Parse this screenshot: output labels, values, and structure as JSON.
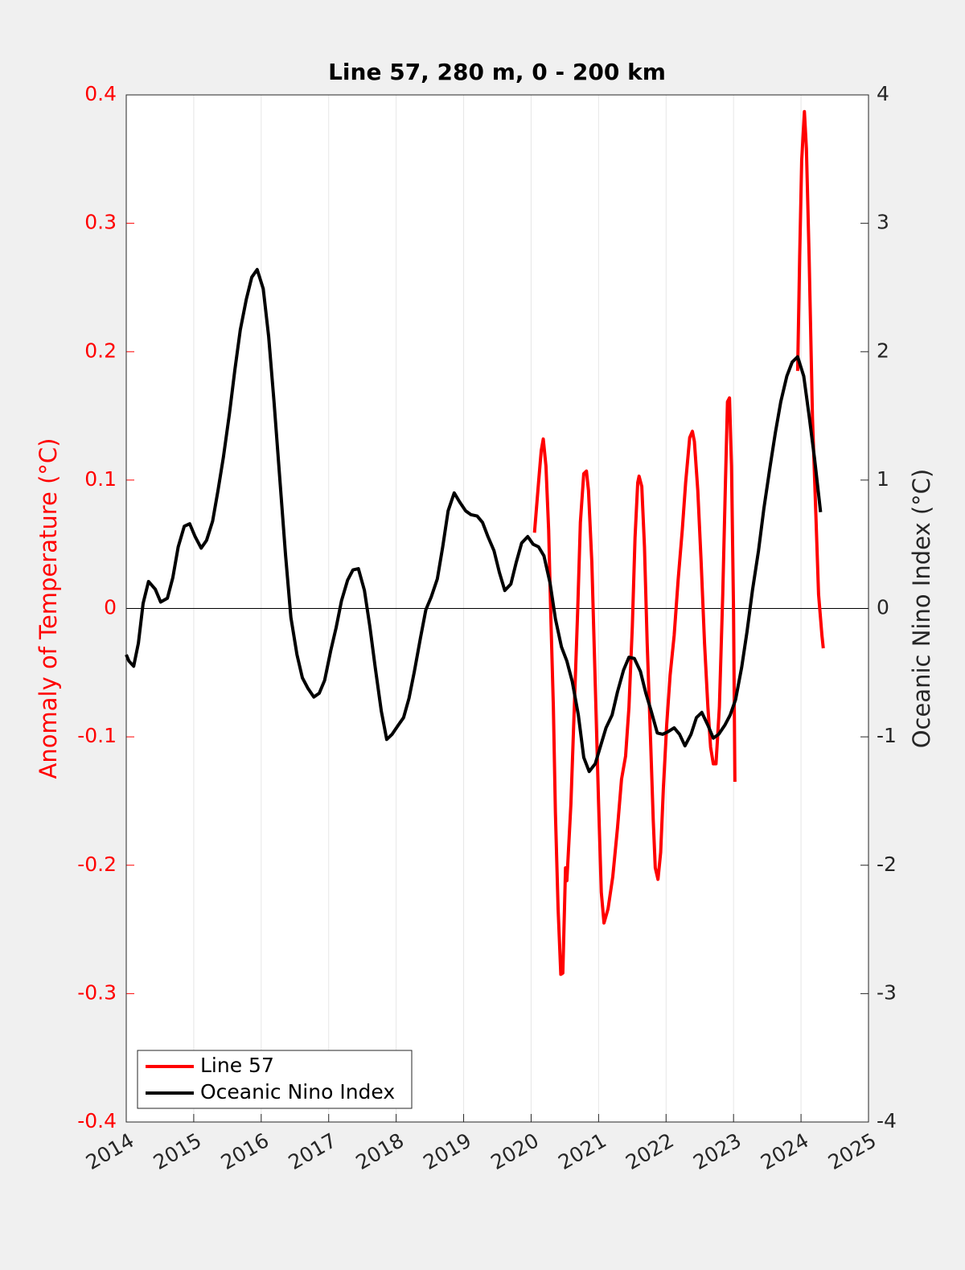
{
  "chart_data": {
    "type": "line",
    "title": "Line 57, 280 m, 0 - 200 km",
    "ylabel": "Anomaly of Temperature (°C)",
    "y2label": "Oceanic Nino Index (°C)",
    "xlim": [
      2014,
      2025
    ],
    "xticks": [
      2014,
      2015,
      2016,
      2017,
      2018,
      2019,
      2020,
      2021,
      2022,
      2023,
      2024,
      2025
    ],
    "ylim": [
      -0.4,
      0.4
    ],
    "yticks": [
      -0.4,
      -0.3,
      -0.2,
      -0.1,
      0,
      0.1,
      0.2,
      0.3,
      0.4
    ],
    "y2lim": [
      -4,
      4
    ],
    "y2ticks": [
      -4,
      -3,
      -2,
      -1,
      0,
      1,
      2,
      3,
      4
    ],
    "xgrid": true,
    "hline": 0,
    "legend": "lower left",
    "ylabel_color": "#ff0000",
    "series": [
      {
        "name": "Line 57",
        "color": "#ff0000",
        "axis": "y",
        "x": [
          2020.05,
          2020.11,
          2020.15,
          2020.18,
          2020.22,
          2020.26,
          2020.29,
          2020.33,
          2020.36,
          2020.4,
          2020.44,
          2020.47,
          2020.51,
          2020.53,
          2020.54,
          2020.59,
          2020.64,
          2020.69,
          2020.73,
          2020.78,
          2020.82,
          2020.85,
          2020.9,
          2020.95,
          2021.0,
          2021.04,
          2021.08,
          2021.14,
          2021.21,
          2021.28,
          2021.34,
          2021.4,
          2021.45,
          2021.5,
          2021.54,
          2021.58,
          2021.6,
          2021.64,
          2021.68,
          2021.72,
          2021.77,
          2021.81,
          2021.84,
          2021.88,
          2021.92,
          2021.96,
          2022.01,
          2022.06,
          2022.12,
          2022.18,
          2022.24,
          2022.29,
          2022.35,
          2022.39,
          2022.42,
          2022.47,
          2022.52,
          2022.57,
          2022.62,
          2022.66,
          2022.7,
          2022.74,
          2022.79,
          2022.84,
          2022.88,
          2022.91,
          2022.94,
          2022.97,
          2023.0,
          2023.02,
          null,
          2023.95,
          2023.98,
          2024.01,
          2024.05,
          2024.08,
          2024.12,
          2024.17,
          2024.22,
          2024.26,
          2024.31,
          2024.33
        ],
        "values": [
          0.059,
          0.098,
          0.123,
          0.132,
          0.111,
          0.061,
          -0.002,
          -0.077,
          -0.159,
          -0.234,
          -0.285,
          -0.284,
          -0.202,
          -0.212,
          -0.202,
          -0.152,
          -0.077,
          -0.002,
          0.067,
          0.105,
          0.107,
          0.092,
          0.036,
          -0.058,
          -0.152,
          -0.221,
          -0.245,
          -0.234,
          -0.209,
          -0.171,
          -0.133,
          -0.115,
          -0.077,
          -0.014,
          0.055,
          0.098,
          0.103,
          0.095,
          0.048,
          -0.027,
          -0.102,
          -0.165,
          -0.202,
          -0.211,
          -0.19,
          -0.14,
          -0.09,
          -0.052,
          -0.021,
          0.023,
          0.061,
          0.098,
          0.133,
          0.138,
          0.13,
          0.092,
          0.036,
          -0.027,
          -0.077,
          -0.108,
          -0.121,
          -0.121,
          -0.077,
          0.011,
          0.098,
          0.161,
          0.164,
          0.111,
          -0.002,
          -0.135,
          null,
          0.185,
          0.274,
          0.349,
          0.387,
          0.358,
          0.274,
          0.148,
          0.073,
          0.011,
          -0.021,
          -0.031
        ]
      },
      {
        "name": "Oceanic Nino Index",
        "color": "#000000",
        "axis": "y2",
        "x": [
          2014.0,
          2014.04,
          2014.11,
          2014.18,
          2014.25,
          2014.33,
          2014.43,
          2014.51,
          2014.61,
          2014.69,
          2014.77,
          2014.86,
          2014.94,
          2015.02,
          2015.11,
          2015.19,
          2015.28,
          2015.36,
          2015.44,
          2015.53,
          2015.61,
          2015.69,
          2015.78,
          2015.86,
          2015.94,
          2016.03,
          2016.11,
          2016.19,
          2016.28,
          2016.36,
          2016.44,
          2016.53,
          2016.61,
          2016.69,
          2016.78,
          2016.86,
          2016.94,
          2017.03,
          2017.11,
          2017.19,
          2017.28,
          2017.36,
          2017.44,
          2017.53,
          2017.61,
          2017.69,
          2017.78,
          2017.86,
          2017.94,
          2018.03,
          2018.11,
          2018.19,
          2018.27,
          2018.36,
          2018.44,
          2018.52,
          2018.61,
          2018.69,
          2018.77,
          2018.86,
          2018.94,
          2019.03,
          2019.11,
          2019.2,
          2019.28,
          2019.36,
          2019.45,
          2019.53,
          2019.61,
          2019.7,
          2019.78,
          2019.86,
          2019.95,
          2020.03,
          2020.11,
          2020.19,
          2020.28,
          2020.36,
          2020.45,
          2020.53,
          2020.61,
          2020.7,
          2020.78,
          2020.86,
          2020.95,
          2021.03,
          2021.11,
          2021.2,
          2021.28,
          2021.37,
          2021.45,
          2021.53,
          2021.62,
          2021.7,
          2021.78,
          2021.87,
          2021.95,
          2022.03,
          2022.12,
          2022.2,
          2022.28,
          2022.37,
          2022.45,
          2022.53,
          2022.62,
          2022.7,
          2022.78,
          2022.87,
          2022.95,
          2023.03,
          2023.12,
          2023.2,
          2023.28,
          2023.37,
          2023.45,
          2023.54,
          2023.62,
          2023.7,
          2023.79,
          2023.87,
          2023.95,
          2024.04,
          2024.12,
          2024.2,
          2024.29
        ],
        "values": [
          -0.36,
          -0.41,
          -0.45,
          -0.27,
          0.04,
          0.21,
          0.15,
          0.05,
          0.08,
          0.24,
          0.48,
          0.64,
          0.66,
          0.56,
          0.47,
          0.53,
          0.68,
          0.92,
          1.18,
          1.52,
          1.86,
          2.17,
          2.41,
          2.58,
          2.64,
          2.49,
          2.12,
          1.61,
          0.98,
          0.42,
          -0.07,
          -0.36,
          -0.54,
          -0.62,
          -0.69,
          -0.66,
          -0.56,
          -0.33,
          -0.15,
          0.06,
          0.22,
          0.3,
          0.31,
          0.14,
          -0.14,
          -0.46,
          -0.8,
          -1.02,
          -0.98,
          -0.91,
          -0.85,
          -0.7,
          -0.49,
          -0.23,
          -0.01,
          0.09,
          0.23,
          0.48,
          0.76,
          0.9,
          0.83,
          0.76,
          0.73,
          0.72,
          0.67,
          0.56,
          0.45,
          0.28,
          0.14,
          0.19,
          0.36,
          0.51,
          0.56,
          0.5,
          0.48,
          0.41,
          0.2,
          -0.08,
          -0.3,
          -0.41,
          -0.57,
          -0.83,
          -1.16,
          -1.27,
          -1.21,
          -1.07,
          -0.93,
          -0.83,
          -0.65,
          -0.48,
          -0.38,
          -0.39,
          -0.49,
          -0.66,
          -0.8,
          -0.97,
          -0.98,
          -0.96,
          -0.93,
          -0.98,
          -1.07,
          -0.98,
          -0.85,
          -0.81,
          -0.91,
          -1.01,
          -0.98,
          -0.91,
          -0.83,
          -0.71,
          -0.46,
          -0.18,
          0.14,
          0.45,
          0.78,
          1.1,
          1.37,
          1.61,
          1.81,
          1.92,
          1.96,
          1.81,
          1.5,
          1.17,
          0.75
        ]
      }
    ]
  }
}
